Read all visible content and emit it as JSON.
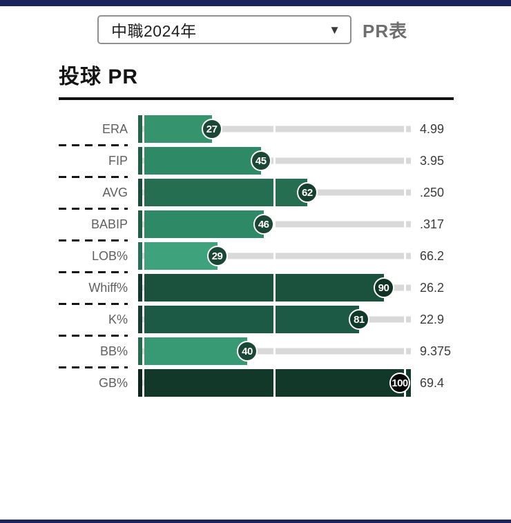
{
  "theme": {
    "navy": "#1A265B",
    "track_gray": "#d9d9d9",
    "rule_black": "#101010"
  },
  "header": {
    "season_select": {
      "value": "中職2024年"
    },
    "pr_table_label": "PR表"
  },
  "section": {
    "title": "投球 PR"
  },
  "chart_data": {
    "type": "bar",
    "orientation": "horizontal",
    "title": "投球 PR",
    "xlim": [
      0,
      100
    ],
    "gridline_at_percent": 50,
    "track_color": "#d9d9d9",
    "legend": "none",
    "categories": [
      "ERA",
      "FIP",
      "AVG",
      "BABIP",
      "LOB%",
      "Whiff%",
      "K%",
      "BB%",
      "GB%"
    ],
    "series": [
      {
        "name": "percentile",
        "values": [
          27,
          45,
          62,
          46,
          29,
          90,
          81,
          40,
          100
        ]
      },
      {
        "name": "stat_value",
        "values": [
          "4.99",
          "3.95",
          ".250",
          ".317",
          "66.2",
          "26.2",
          "22.9",
          "9.375",
          "69.4"
        ]
      }
    ],
    "rows": [
      {
        "label": "ERA",
        "percentile": 27,
        "value": "4.99",
        "bar_color": "#35936E",
        "badge_color": "#1B4736"
      },
      {
        "label": "FIP",
        "percentile": 45,
        "value": "3.95",
        "bar_color": "#2E8A66",
        "badge_color": "#1B4736"
      },
      {
        "label": "AVG",
        "percentile": 62,
        "value": ".250",
        "bar_color": "#256E52",
        "badge_color": "#17402F"
      },
      {
        "label": "BABIP",
        "percentile": 46,
        "value": ".317",
        "bar_color": "#2E8A66",
        "badge_color": "#1B4736"
      },
      {
        "label": "LOB%",
        "percentile": 29,
        "value": "66.2",
        "bar_color": "#3EA37D",
        "badge_color": "#1B4736"
      },
      {
        "label": "Whiff%",
        "percentile": 90,
        "value": "26.2",
        "bar_color": "#1A523E",
        "badge_color": "#0F3425"
      },
      {
        "label": "K%",
        "percentile": 81,
        "value": "22.9",
        "bar_color": "#1D5A45",
        "badge_color": "#11392A"
      },
      {
        "label": "BB%",
        "percentile": 40,
        "value": "9.375",
        "bar_color": "#389A74",
        "badge_color": "#1B4736"
      },
      {
        "label": "GB%",
        "percentile": 100,
        "value": "69.4",
        "bar_color": "#113828",
        "badge_color": "#060606"
      }
    ]
  }
}
